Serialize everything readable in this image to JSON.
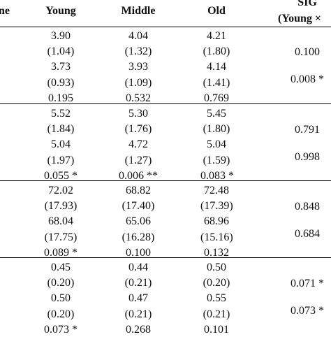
{
  "header": {
    "outcome_partial": "ne",
    "col_young": "Young",
    "col_middle": "Middle",
    "col_old": "Old",
    "col_sig": "SIG",
    "col_sig_sub": "(Young ×"
  },
  "blocks": [
    {
      "rows": [
        {
          "young": "3.90",
          "middle": "4.04",
          "old": "4.21"
        },
        {
          "young": "(1.04)",
          "middle": "(1.32)",
          "old": "(1.80)"
        },
        {
          "young": "3.73",
          "middle": "3.93",
          "old": "4.14"
        },
        {
          "young": "(0.93)",
          "middle": "(1.09)",
          "old": "(1.41)"
        },
        {
          "young": "0.195",
          "middle": "0.532",
          "old": "0.769"
        }
      ],
      "sig": [
        "0.100",
        "0.008 *"
      ]
    },
    {
      "rows": [
        {
          "young": "5.52",
          "middle": "5.30",
          "old": "5.45"
        },
        {
          "young": "(1.84)",
          "middle": "(1.76)",
          "old": "(1.80)"
        },
        {
          "young": "5.04",
          "middle": "4.72",
          "old": "5.04"
        },
        {
          "young": "(1.97)",
          "middle": "(1.27)",
          "old": "(1.59)"
        },
        {
          "young": "0.055 *",
          "middle": "0.006 **",
          "old": "0.083 *"
        }
      ],
      "sig": [
        "0.791",
        "0.998"
      ]
    },
    {
      "rows": [
        {
          "young": "72.02",
          "middle": "68.82",
          "old": "72.48"
        },
        {
          "young": "(17.93)",
          "middle": "(17.40)",
          "old": "(17.39)"
        },
        {
          "young": "68.04",
          "middle": "65.06",
          "old": "68.96"
        },
        {
          "young": "(17.75)",
          "middle": "(16.28)",
          "old": "(15.16)"
        },
        {
          "young": "0.089 *",
          "middle": "0.100",
          "old": "0.132"
        }
      ],
      "sig": [
        "0.848",
        "0.684"
      ]
    },
    {
      "rows": [
        {
          "young": "0.45",
          "middle": "0.44",
          "old": "0.50"
        },
        {
          "young": "(0.20)",
          "middle": "(0.21)",
          "old": "(0.20)"
        },
        {
          "young": "0.50",
          "middle": "0.47",
          "old": "0.55"
        },
        {
          "young": "(0.20)",
          "middle": "(0.21)",
          "old": "(0.21)"
        },
        {
          "young": "0.073 *",
          "middle": "0.268",
          "old": "0.101"
        }
      ],
      "sig": [
        "0.071 *",
        "0.073 *"
      ]
    }
  ]
}
